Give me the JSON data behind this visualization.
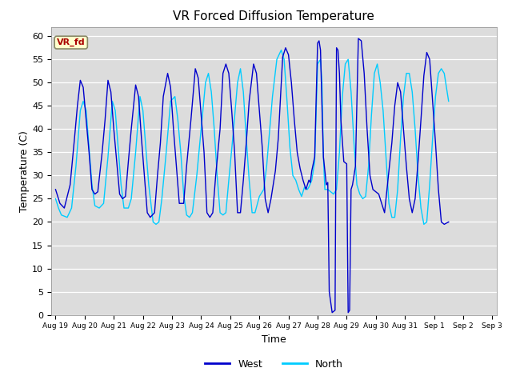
{
  "title": "VR Forced Diffusion Temperature",
  "xlabel": "Time",
  "ylabel": "Temperature (C)",
  "ylim": [
    0,
    62
  ],
  "west_color": "#0000CC",
  "north_color": "#00CCFF",
  "background_color": "#DCDCDC",
  "annotation_text": "VR_fd",
  "annotation_bg": "#FFFFCC",
  "annotation_border": "#AA0000",
  "west_data": [
    [
      0.0,
      27
    ],
    [
      0.05,
      26
    ],
    [
      0.15,
      24
    ],
    [
      0.3,
      23
    ],
    [
      0.5,
      28
    ],
    [
      0.65,
      38
    ],
    [
      0.75,
      45
    ],
    [
      0.85,
      50.5
    ],
    [
      0.95,
      49
    ],
    [
      1.05,
      42
    ],
    [
      1.15,
      35
    ],
    [
      1.25,
      27
    ],
    [
      1.35,
      26
    ],
    [
      1.45,
      26.5
    ],
    [
      1.6,
      35
    ],
    [
      1.7,
      42
    ],
    [
      1.8,
      50.5
    ],
    [
      1.9,
      48
    ],
    [
      2.0,
      40
    ],
    [
      2.1,
      33
    ],
    [
      2.2,
      26
    ],
    [
      2.3,
      25
    ],
    [
      2.4,
      25.5
    ],
    [
      2.5,
      33
    ],
    [
      2.6,
      40
    ],
    [
      2.75,
      49.5
    ],
    [
      2.85,
      47
    ],
    [
      2.95,
      38
    ],
    [
      3.05,
      30
    ],
    [
      3.15,
      22
    ],
    [
      3.25,
      21
    ],
    [
      3.4,
      22
    ],
    [
      3.5,
      30
    ],
    [
      3.6,
      37
    ],
    [
      3.7,
      47
    ],
    [
      3.85,
      52
    ],
    [
      3.95,
      49
    ],
    [
      4.05,
      40
    ],
    [
      4.15,
      32
    ],
    [
      4.25,
      24
    ],
    [
      4.4,
      24
    ],
    [
      4.5,
      32
    ],
    [
      4.65,
      42
    ],
    [
      4.8,
      53
    ],
    [
      4.9,
      51
    ],
    [
      5.0,
      43
    ],
    [
      5.1,
      35
    ],
    [
      5.2,
      22
    ],
    [
      5.3,
      21
    ],
    [
      5.4,
      22
    ],
    [
      5.5,
      30
    ],
    [
      5.65,
      40
    ],
    [
      5.75,
      52
    ],
    [
      5.85,
      54
    ],
    [
      5.95,
      52
    ],
    [
      6.05,
      44
    ],
    [
      6.15,
      35
    ],
    [
      6.25,
      22
    ],
    [
      6.35,
      22
    ],
    [
      6.45,
      29
    ],
    [
      6.55,
      37
    ],
    [
      6.65,
      46
    ],
    [
      6.8,
      54
    ],
    [
      6.9,
      52
    ],
    [
      7.0,
      44
    ],
    [
      7.1,
      36
    ],
    [
      7.2,
      25
    ],
    [
      7.3,
      22
    ],
    [
      7.4,
      25
    ],
    [
      7.55,
      31
    ],
    [
      7.65,
      38
    ],
    [
      7.8,
      55.5
    ],
    [
      7.9,
      57.5
    ],
    [
      8.0,
      56
    ],
    [
      8.1,
      50
    ],
    [
      8.2,
      42
    ],
    [
      8.3,
      35
    ],
    [
      8.4,
      31.5
    ],
    [
      8.5,
      29
    ],
    [
      8.6,
      27
    ],
    [
      8.7,
      29
    ],
    [
      8.75,
      28.5
    ],
    [
      8.8,
      31
    ],
    [
      8.9,
      34
    ],
    [
      9.0,
      58.5
    ],
    [
      9.05,
      59
    ],
    [
      9.1,
      57
    ],
    [
      9.15,
      45
    ],
    [
      9.2,
      34
    ],
    [
      9.3,
      28
    ],
    [
      9.35,
      28.5
    ],
    [
      9.4,
      5
    ],
    [
      9.5,
      0.5
    ],
    [
      9.6,
      1
    ],
    [
      9.65,
      57.5
    ],
    [
      9.7,
      57
    ],
    [
      9.75,
      52
    ],
    [
      9.8,
      42
    ],
    [
      9.9,
      33
    ],
    [
      10.0,
      32.5
    ],
    [
      10.05,
      0.5
    ],
    [
      10.1,
      1
    ],
    [
      10.15,
      27
    ],
    [
      10.2,
      28
    ],
    [
      10.3,
      32
    ],
    [
      10.4,
      59.5
    ],
    [
      10.5,
      59
    ],
    [
      10.6,
      52
    ],
    [
      10.7,
      40
    ],
    [
      10.8,
      30
    ],
    [
      10.9,
      27
    ],
    [
      11.0,
      26.5
    ],
    [
      11.1,
      26
    ],
    [
      11.2,
      24
    ],
    [
      11.3,
      22
    ],
    [
      11.4,
      28
    ],
    [
      11.55,
      37
    ],
    [
      11.65,
      45
    ],
    [
      11.75,
      50
    ],
    [
      11.85,
      48
    ],
    [
      11.95,
      40
    ],
    [
      12.05,
      32
    ],
    [
      12.15,
      25
    ],
    [
      12.25,
      22
    ],
    [
      12.35,
      25
    ],
    [
      12.45,
      33
    ],
    [
      12.55,
      42
    ],
    [
      12.65,
      51.5
    ],
    [
      12.75,
      56.5
    ],
    [
      12.85,
      55
    ],
    [
      12.95,
      46
    ],
    [
      13.05,
      37
    ],
    [
      13.15,
      27
    ],
    [
      13.25,
      20
    ],
    [
      13.35,
      19.5
    ],
    [
      13.5,
      20
    ]
  ],
  "north_data": [
    [
      0.0,
      25
    ],
    [
      0.1,
      23
    ],
    [
      0.2,
      21.5
    ],
    [
      0.4,
      21
    ],
    [
      0.55,
      23
    ],
    [
      0.7,
      32
    ],
    [
      0.85,
      44
    ],
    [
      0.95,
      46
    ],
    [
      1.05,
      44
    ],
    [
      1.15,
      36
    ],
    [
      1.25,
      28
    ],
    [
      1.35,
      23.5
    ],
    [
      1.5,
      23
    ],
    [
      1.65,
      24
    ],
    [
      1.8,
      34
    ],
    [
      1.95,
      46
    ],
    [
      2.05,
      44
    ],
    [
      2.15,
      36
    ],
    [
      2.25,
      28
    ],
    [
      2.35,
      23
    ],
    [
      2.5,
      23
    ],
    [
      2.6,
      25
    ],
    [
      2.75,
      35
    ],
    [
      2.9,
      47
    ],
    [
      3.0,
      44
    ],
    [
      3.1,
      36
    ],
    [
      3.2,
      28
    ],
    [
      3.35,
      20
    ],
    [
      3.45,
      19.5
    ],
    [
      3.55,
      20
    ],
    [
      3.65,
      25
    ],
    [
      3.8,
      35
    ],
    [
      3.95,
      46
    ],
    [
      4.1,
      47
    ],
    [
      4.2,
      42
    ],
    [
      4.3,
      35
    ],
    [
      4.4,
      26
    ],
    [
      4.5,
      21.5
    ],
    [
      4.6,
      21
    ],
    [
      4.7,
      22
    ],
    [
      4.85,
      30
    ],
    [
      5.0,
      40
    ],
    [
      5.15,
      50
    ],
    [
      5.25,
      52
    ],
    [
      5.35,
      48
    ],
    [
      5.45,
      40
    ],
    [
      5.55,
      30
    ],
    [
      5.65,
      22
    ],
    [
      5.75,
      21.5
    ],
    [
      5.85,
      22
    ],
    [
      5.95,
      29
    ],
    [
      6.1,
      39
    ],
    [
      6.25,
      50
    ],
    [
      6.35,
      53
    ],
    [
      6.45,
      48
    ],
    [
      6.55,
      38
    ],
    [
      6.65,
      29
    ],
    [
      6.75,
      22
    ],
    [
      6.85,
      22
    ],
    [
      7.0,
      25.5
    ],
    [
      7.15,
      27
    ],
    [
      7.25,
      32
    ],
    [
      7.45,
      47
    ],
    [
      7.6,
      55
    ],
    [
      7.75,
      57
    ],
    [
      7.85,
      55
    ],
    [
      7.95,
      46
    ],
    [
      8.05,
      36
    ],
    [
      8.15,
      30
    ],
    [
      8.25,
      29
    ],
    [
      8.35,
      27
    ],
    [
      8.45,
      25.5
    ],
    [
      8.55,
      27.5
    ],
    [
      8.65,
      27
    ],
    [
      8.7,
      27.5
    ],
    [
      8.8,
      29
    ],
    [
      8.9,
      33
    ],
    [
      9.0,
      54
    ],
    [
      9.1,
      55
    ],
    [
      9.15,
      50
    ],
    [
      9.2,
      34
    ],
    [
      9.25,
      27
    ],
    [
      9.35,
      27
    ],
    [
      9.45,
      26.5
    ],
    [
      9.55,
      26
    ],
    [
      9.65,
      27
    ],
    [
      9.75,
      35
    ],
    [
      9.85,
      47
    ],
    [
      9.95,
      54
    ],
    [
      10.05,
      55
    ],
    [
      10.15,
      48
    ],
    [
      10.25,
      37
    ],
    [
      10.35,
      28
    ],
    [
      10.45,
      26
    ],
    [
      10.55,
      25
    ],
    [
      10.65,
      25.5
    ],
    [
      10.75,
      32
    ],
    [
      10.85,
      43
    ],
    [
      10.95,
      52
    ],
    [
      11.05,
      54
    ],
    [
      11.15,
      50
    ],
    [
      11.25,
      44
    ],
    [
      11.35,
      34
    ],
    [
      11.45,
      24
    ],
    [
      11.55,
      21
    ],
    [
      11.65,
      21
    ],
    [
      11.75,
      27
    ],
    [
      11.85,
      38
    ],
    [
      11.95,
      47
    ],
    [
      12.05,
      52
    ],
    [
      12.15,
      52
    ],
    [
      12.25,
      48
    ],
    [
      12.35,
      40
    ],
    [
      12.45,
      30
    ],
    [
      12.55,
      23
    ],
    [
      12.65,
      19.5
    ],
    [
      12.75,
      20
    ],
    [
      12.85,
      28
    ],
    [
      12.95,
      38
    ],
    [
      13.05,
      47
    ],
    [
      13.15,
      52
    ],
    [
      13.25,
      53
    ],
    [
      13.35,
      52
    ],
    [
      13.5,
      46
    ]
  ],
  "x_tick_labels": [
    "Aug 19",
    "Aug 20",
    "Aug 21",
    "Aug 22",
    "Aug 23",
    "Aug 24",
    "Aug 25",
    "Aug 26",
    "Aug 27",
    "Aug 28",
    "Aug 29",
    "Aug 30",
    "Aug 31",
    "Sep 1",
    "Sep 2",
    "Sep 3"
  ],
  "yticks": [
    0,
    5,
    10,
    15,
    20,
    25,
    30,
    35,
    40,
    45,
    50,
    55,
    60
  ],
  "num_days": 15
}
